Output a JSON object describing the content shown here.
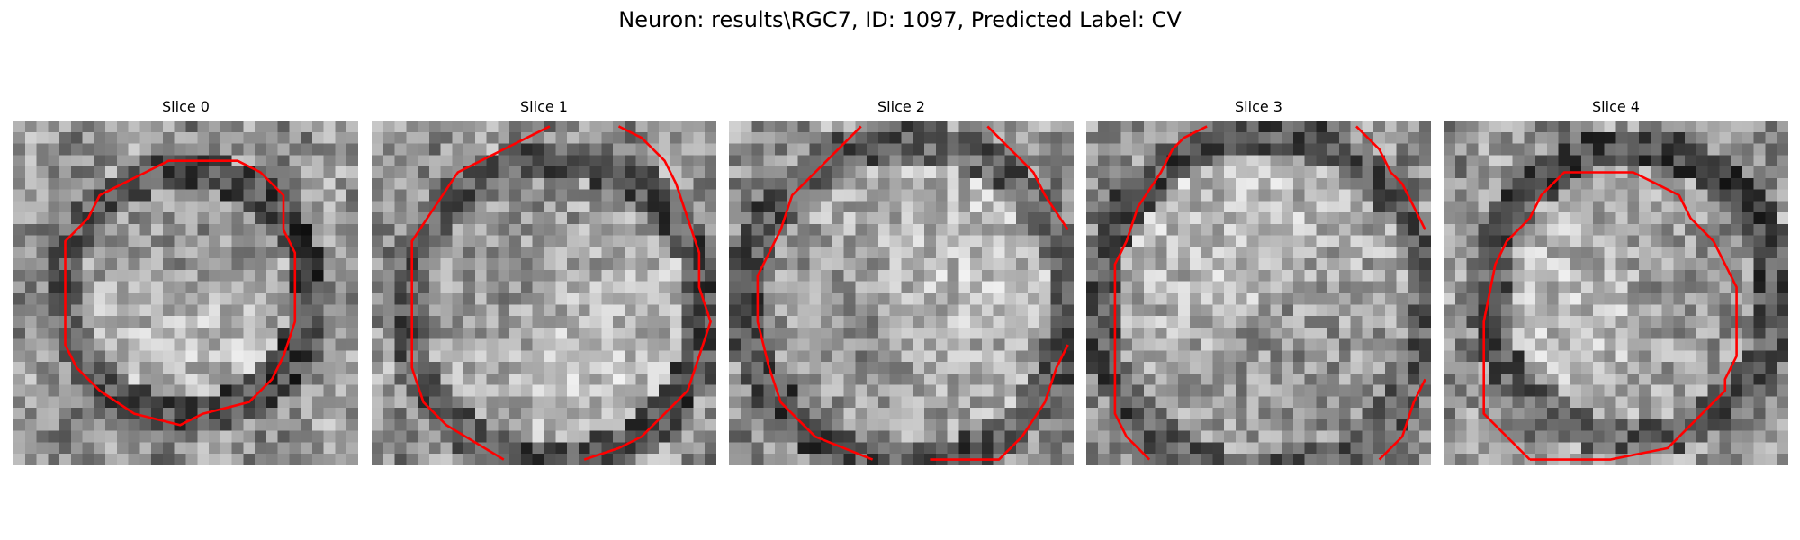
{
  "figure": {
    "title": "Neuron: results\\RGC7, ID: 1097, Predicted Label: CV"
  },
  "panels": [
    {
      "title": "Slice 0"
    },
    {
      "title": "Slice 1"
    },
    {
      "title": "Slice 2"
    },
    {
      "title": "Slice 3"
    },
    {
      "title": "Slice 4"
    }
  ],
  "colors": {
    "contour": "#ff0000",
    "background": "#ffffff"
  }
}
